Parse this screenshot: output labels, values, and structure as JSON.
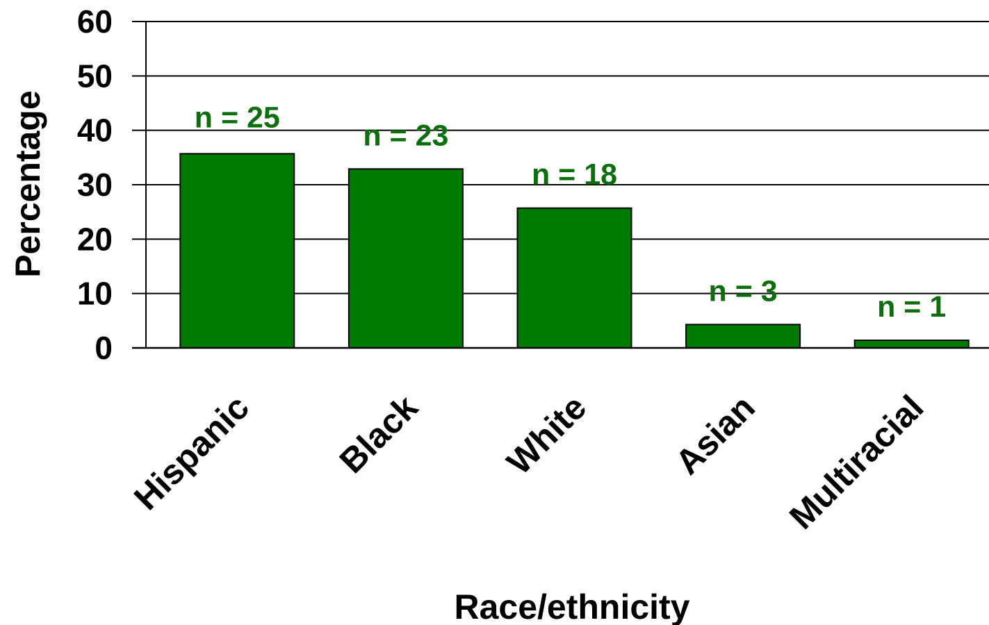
{
  "chart_data": {
    "type": "bar",
    "categories": [
      "Hispanic",
      "Black",
      "White",
      "Asian",
      "Multiracial"
    ],
    "values": [
      35.7,
      32.9,
      25.7,
      4.3,
      1.4
    ],
    "data_labels": [
      "n = 25",
      "n = 23",
      "n = 18",
      "n = 3",
      "n = 1"
    ],
    "xlabel": "Race/ethnicity",
    "ylabel": "Percentage",
    "ylim": [
      0,
      60
    ],
    "yticks": [
      0,
      10,
      20,
      30,
      40,
      50,
      60
    ],
    "grid": true,
    "legend": "none",
    "colors": {
      "bar": "#007a00",
      "bar_edge": "#000000",
      "data_label": "#0d6e0d",
      "grid": "#000000"
    }
  }
}
